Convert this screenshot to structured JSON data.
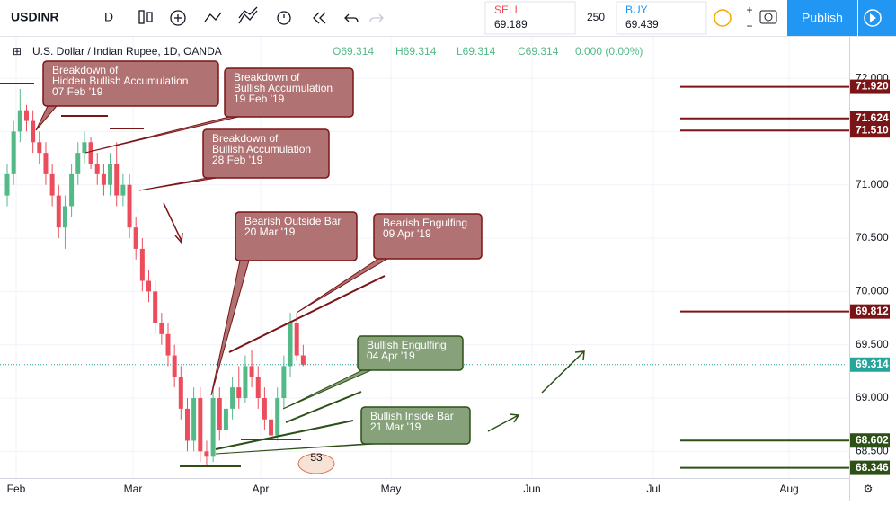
{
  "toolbar": {
    "symbol": "USDINR",
    "interval": "D",
    "sell_label": "SELL",
    "sell_price": "69.189",
    "spread": "250",
    "buy_label": "BUY",
    "buy_price": "69.439",
    "publish": "Publish"
  },
  "chart_data": {
    "type": "candlestick",
    "title": "U.S. Dollar / Indian Rupee, 1D, OANDA",
    "legend": {
      "open": "O69.314",
      "high": "H69.314",
      "low": "L69.314",
      "close": "C69.314",
      "change": "0.000 (0.00%)"
    },
    "categories": [
      null,
      null,
      null,
      null,
      null,
      null,
      null,
      null,
      null,
      null,
      null,
      null,
      null,
      null,
      null,
      null,
      null,
      null,
      null,
      null,
      null,
      null,
      null,
      null,
      null,
      null,
      null,
      null,
      null,
      null,
      null,
      null,
      null,
      null,
      null,
      null,
      null,
      null,
      null,
      null,
      null,
      null,
      null,
      null,
      null,
      null,
      null
    ],
    "series": [
      {
        "name": "USDINR",
        "up_color": "#53b987",
        "down_color": "#eb4d5c",
        "open": [
          70.9,
          71.1,
          71.5,
          71.7,
          71.6,
          71.4,
          71.3,
          71.1,
          70.9,
          70.6,
          70.8,
          71.1,
          71.3,
          71.4,
          71.2,
          71.1,
          71.0,
          71.2,
          70.9,
          71.0,
          70.6,
          70.4,
          70.1,
          70.0,
          69.7,
          69.6,
          69.4,
          69.2,
          68.9,
          68.6,
          69.0,
          68.5,
          68.45,
          69.0,
          68.7,
          68.9,
          69.1,
          69.0,
          69.3,
          69.2,
          69.0,
          68.8,
          68.65,
          69.0,
          69.3,
          69.7,
          69.4
        ],
        "high": [
          71.2,
          71.6,
          71.9,
          71.75,
          71.7,
          71.5,
          71.4,
          71.2,
          71.0,
          70.9,
          71.2,
          71.4,
          71.5,
          71.45,
          71.3,
          71.2,
          71.3,
          71.4,
          71.1,
          71.1,
          70.7,
          70.5,
          70.2,
          70.1,
          69.8,
          69.7,
          69.5,
          69.3,
          69.0,
          69.1,
          69.1,
          68.6,
          69.1,
          69.1,
          69.0,
          69.2,
          69.3,
          69.4,
          69.45,
          69.3,
          69.1,
          68.9,
          69.1,
          69.4,
          69.8,
          69.8,
          69.5
        ],
        "low": [
          70.8,
          71.0,
          71.4,
          71.5,
          71.3,
          71.2,
          71.0,
          70.8,
          70.5,
          70.4,
          70.7,
          71.0,
          71.2,
          71.15,
          71.0,
          70.9,
          70.9,
          70.8,
          70.8,
          70.5,
          70.3,
          70.0,
          69.9,
          69.6,
          69.5,
          69.3,
          69.1,
          68.8,
          68.5,
          68.5,
          68.4,
          68.35,
          68.4,
          68.6,
          68.6,
          68.8,
          68.9,
          68.95,
          69.1,
          68.9,
          68.7,
          68.6,
          68.6,
          68.9,
          69.2,
          69.35,
          69.3
        ],
        "close": [
          71.1,
          71.5,
          71.7,
          71.6,
          71.4,
          71.3,
          71.1,
          70.9,
          70.6,
          70.8,
          71.1,
          71.3,
          71.4,
          71.2,
          71.1,
          71.0,
          71.2,
          70.9,
          71.0,
          70.6,
          70.4,
          70.1,
          70.0,
          69.7,
          69.6,
          69.4,
          69.2,
          68.9,
          68.6,
          69.0,
          68.5,
          68.45,
          69.0,
          68.7,
          68.9,
          69.1,
          69.0,
          69.3,
          69.2,
          69.0,
          68.8,
          68.65,
          69.0,
          69.3,
          69.7,
          69.4,
          69.314
        ]
      }
    ],
    "ylim": [
      68.25,
      72.38
    ],
    "yticks": [
      {
        "value": 72,
        "label": "72.000"
      },
      {
        "value": 71.5,
        "label": "71.500"
      },
      {
        "value": 71,
        "label": "71.000"
      },
      {
        "value": 70.5,
        "label": "70.500"
      },
      {
        "value": 70,
        "label": "70.000"
      },
      {
        "value": 69.5,
        "label": "69.500"
      },
      {
        "value": 69,
        "label": "69.000"
      },
      {
        "value": 68.5,
        "label": "68.500"
      }
    ],
    "xtick_labels": [
      "Feb",
      "Mar",
      "Apr",
      "May",
      "Jun",
      "Jul",
      "Aug"
    ],
    "grid": true,
    "levels": [
      {
        "value": 71.92,
        "label": "71.920",
        "color": "#7b1416"
      },
      {
        "value": 71.624,
        "label": "71.624",
        "color": "#7b1416"
      },
      {
        "value": 71.51,
        "label": "71.510",
        "color": "#7b1416"
      },
      {
        "value": 69.812,
        "label": "69.812",
        "color": "#7b1416"
      },
      {
        "value": 68.602,
        "label": "68.602",
        "color": "#2d5016"
      },
      {
        "value": 68.346,
        "label": "68.346",
        "color": "#2d5016"
      }
    ],
    "last_price": {
      "value": 69.314,
      "label": "69.314",
      "color": "#26a69a"
    },
    "annotations": [
      {
        "lines": [
          "Breakdown of",
          "Hidden Bullish Accumulation",
          "07 Feb '19"
        ],
        "color": "#b07272"
      },
      {
        "lines": [
          "Breakdown of",
          "Bullish Accumulation",
          "19 Feb '19"
        ],
        "color": "#b07272"
      },
      {
        "lines": [
          "Breakdown of",
          "Bullish Accumulation",
          "28 Feb '19"
        ],
        "color": "#b07272"
      },
      {
        "lines": [
          "Bearish Outside Bar",
          "20 Mar '19"
        ],
        "color": "#b07272"
      },
      {
        "lines": [
          "Bearish Engulfing",
          "09 Apr '19"
        ],
        "color": "#b07272"
      },
      {
        "lines": [
          "Bullish Engulfing",
          "04 Apr '19"
        ],
        "color": "#87a27a"
      },
      {
        "lines": [
          "Bullish Inside Bar",
          "21 Mar '19"
        ],
        "color": "#87a27a"
      }
    ],
    "badge": "53"
  }
}
